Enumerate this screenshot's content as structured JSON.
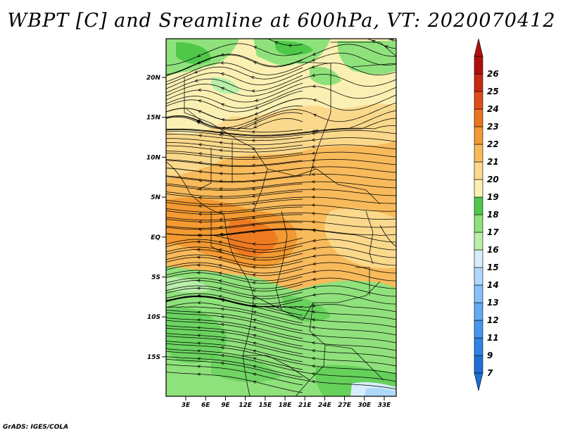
{
  "title": "WBPT [C] and Sreamline at 600hPa, VT: 2020070412",
  "credit": "GrADS: IGES/COLA",
  "map": {
    "lat_ticks": [
      "20N",
      "15N",
      "10N",
      "5N",
      "EQ",
      "5S",
      "10S",
      "15S"
    ],
    "lon_ticks": [
      "3E",
      "6E",
      "9E",
      "12E",
      "15E",
      "18E",
      "21E",
      "24E",
      "27E",
      "30E",
      "33E"
    ]
  },
  "colorbar": {
    "levels": [
      "7",
      "9",
      "11",
      "12",
      "13",
      "14",
      "15",
      "16",
      "17",
      "18",
      "19",
      "20",
      "21",
      "22",
      "23",
      "24",
      "25",
      "26"
    ],
    "colors": [
      "#1e6fd9",
      "#2f83e6",
      "#4596ef",
      "#62aaf5",
      "#86c1fa",
      "#aed8fc",
      "#d6eefb",
      "#b9efaa",
      "#8fe27b",
      "#4fc84a",
      "#fbf0b3",
      "#fbd98c",
      "#f8ba5a",
      "#f39a32",
      "#ec7420",
      "#dd4d17",
      "#c82912",
      "#b10f0d"
    ]
  }
}
